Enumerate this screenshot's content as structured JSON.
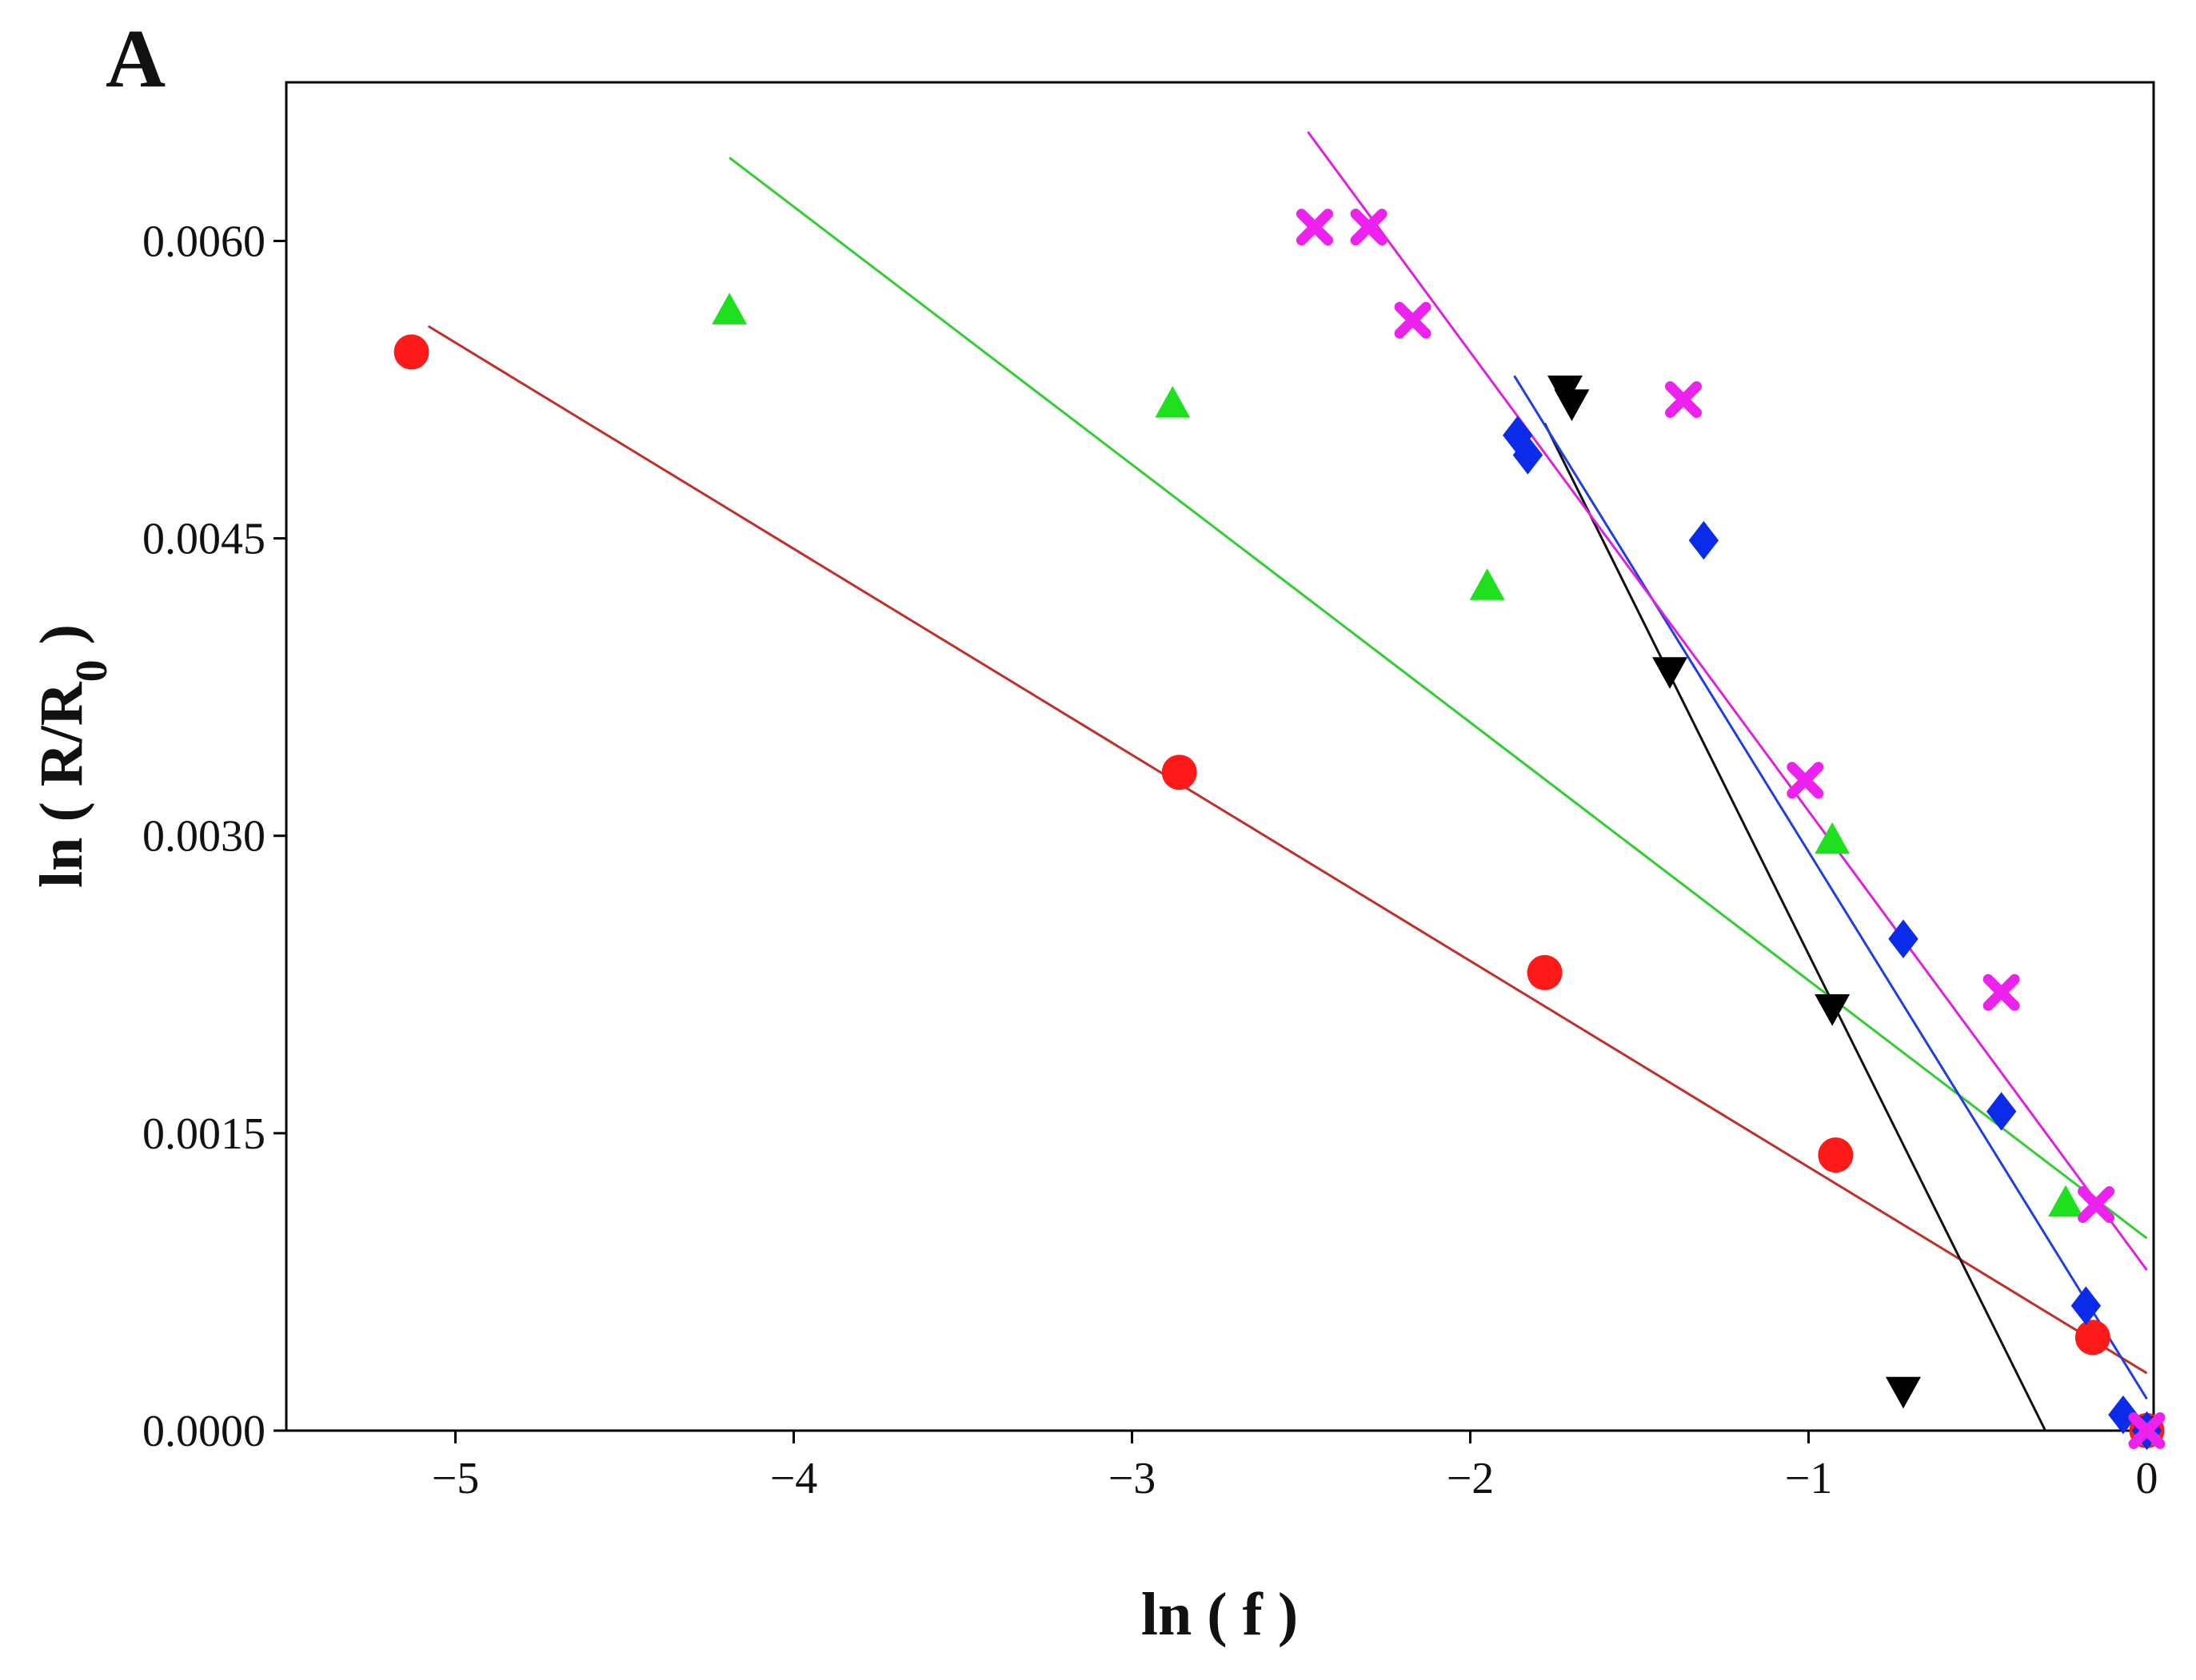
{
  "chart_data": {
    "type": "scatter",
    "panel_label": "A",
    "title": "",
    "xlabel": "ln ( f )",
    "ylabel_main": "ln ( R/R",
    "ylabel_sub": "0",
    "ylabel_end": " )",
    "xlim": [
      -5.5,
      0.02
    ],
    "ylim": [
      0,
      0.0068
    ],
    "x_ticks": [
      -5,
      -4,
      -3,
      -2,
      -1,
      0
    ],
    "x_tick_labels": [
      "−5",
      "−4",
      "−3",
      "−2",
      "−1",
      "0"
    ],
    "y_ticks": [
      0,
      0.0015,
      0.003,
      0.0045,
      0.006
    ],
    "y_tick_labels": [
      "0.0000",
      "0.0015",
      "0.0030",
      "0.0045",
      "0.0060"
    ],
    "grid": false,
    "legend": "none",
    "series": [
      {
        "marker": "circle",
        "color": "#ff1a1a",
        "line_color": "#c0302a",
        "points": [
          [
            -5.13,
            0.00544
          ],
          [
            -2.86,
            0.00332
          ],
          [
            -1.78,
            0.00231
          ],
          [
            -0.92,
            0.00139
          ],
          [
            -0.16,
            0.00047
          ],
          [
            0.0,
            0.0
          ]
        ],
        "fit": [
          [
            -5.08,
            0.00557
          ],
          [
            0.0,
            0.00029
          ]
        ]
      },
      {
        "marker": "triangle-up",
        "color": "#1ee01e",
        "line_color": "#33cc33",
        "points": [
          [
            -4.19,
            0.00565
          ],
          [
            -2.88,
            0.00518
          ],
          [
            -1.95,
            0.00426
          ],
          [
            -0.93,
            0.00298
          ],
          [
            -0.24,
            0.00115
          ],
          [
            0.0,
            0.0
          ]
        ],
        "fit": [
          [
            -4.19,
            0.00642
          ],
          [
            0.0,
            0.00097
          ]
        ]
      },
      {
        "marker": "triangle-down",
        "color": "#000000",
        "line_color": "#111111",
        "points": [
          [
            -1.72,
            0.00525
          ],
          [
            -1.7,
            0.00518
          ],
          [
            -1.41,
            0.00383
          ],
          [
            -0.93,
            0.00213
          ],
          [
            -0.72,
            0.0002
          ],
          [
            0.0,
            0.0
          ]
        ],
        "fit": [
          [
            -1.78,
            0.00508
          ],
          [
            -0.3,
            0.0
          ]
        ]
      },
      {
        "marker": "diamond",
        "color": "#0a2be8",
        "line_color": "#1f3fe0",
        "points": [
          [
            -1.86,
            0.00502
          ],
          [
            -1.83,
            0.00492
          ],
          [
            -1.31,
            0.00449
          ],
          [
            -0.72,
            0.00248
          ],
          [
            -0.43,
            0.00161
          ],
          [
            -0.18,
            0.00063
          ],
          [
            -0.07,
            8e-05
          ],
          [
            0.0,
            0.0
          ]
        ],
        "fit": [
          [
            -1.87,
            0.00532
          ],
          [
            0.0,
            0.00016
          ]
        ]
      },
      {
        "marker": "x",
        "color": "#ee22ee",
        "line_color": "#dd22dd",
        "points": [
          [
            -2.46,
            0.00607
          ],
          [
            -2.3,
            0.00607
          ],
          [
            -2.17,
            0.0056
          ],
          [
            -1.37,
            0.0052
          ],
          [
            -1.01,
            0.00328
          ],
          [
            -0.43,
            0.00221
          ],
          [
            -0.15,
            0.00114
          ],
          [
            0.0,
            0.0
          ]
        ],
        "fit": [
          [
            -2.48,
            0.00655
          ],
          [
            0.0,
            0.00081
          ]
        ]
      }
    ]
  }
}
